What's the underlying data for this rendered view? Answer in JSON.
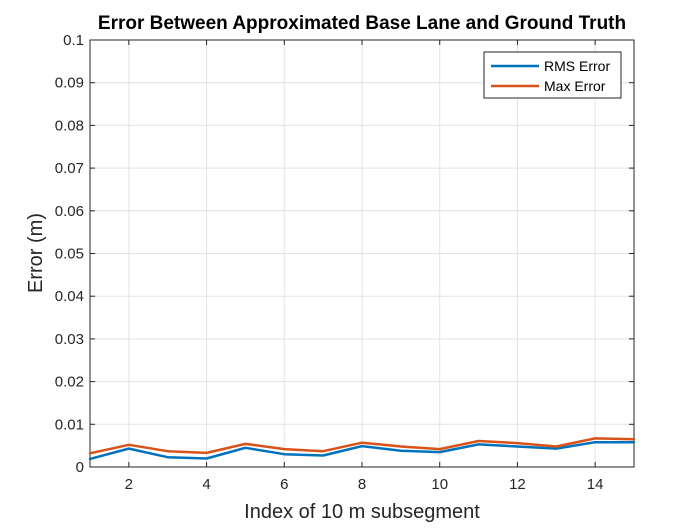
{
  "chart_data": {
    "type": "line",
    "title": "Error Between Approximated Base Lane and Ground Truth",
    "xlabel": "Index of 10 m subsegment",
    "ylabel": "Error (m)",
    "xlim": [
      1,
      15
    ],
    "ylim": [
      0,
      0.1
    ],
    "xticks": [
      2,
      4,
      6,
      8,
      10,
      12,
      14
    ],
    "yticks": [
      0,
      0.01,
      0.02,
      0.03,
      0.04,
      0.05,
      0.06,
      0.07,
      0.08,
      0.09,
      0.1
    ],
    "ytick_labels": [
      "0",
      "0.01",
      "0.02",
      "0.03",
      "0.04",
      "0.05",
      "0.06",
      "0.07",
      "0.08",
      "0.09",
      "0.1"
    ],
    "grid": true,
    "legend_position": "top-right",
    "x": [
      1,
      2,
      3,
      4,
      5,
      6,
      7,
      8,
      9,
      10,
      11,
      12,
      13,
      14,
      15
    ],
    "series": [
      {
        "name": "RMS Error",
        "color": "#0072BD",
        "values": [
          0.0019,
          0.0043,
          0.0023,
          0.002,
          0.0045,
          0.003,
          0.0027,
          0.0049,
          0.0038,
          0.0035,
          0.0053,
          0.0048,
          0.0043,
          0.0058,
          0.0058
        ]
      },
      {
        "name": "Max Error",
        "color": "#D95319",
        "values": [
          0.0032,
          0.0052,
          0.0037,
          0.0033,
          0.0054,
          0.0042,
          0.0037,
          0.0057,
          0.0048,
          0.0042,
          0.0061,
          0.0056,
          0.0048,
          0.0067,
          0.0065
        ]
      }
    ]
  }
}
